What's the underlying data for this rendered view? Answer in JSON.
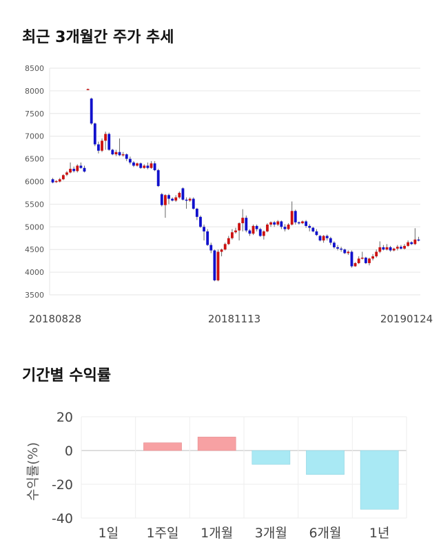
{
  "section1": {
    "title": "최근 3개월간 주가 추세"
  },
  "section2": {
    "title": "기간별 수익률"
  },
  "chart_data": [
    {
      "type": "candlestick",
      "title": "최근 3개월간 주가 추세",
      "y_ticks": [
        "8500",
        "8000",
        "7500",
        "7000",
        "6500",
        "6000",
        "5500",
        "5000",
        "4500",
        "4000",
        "3500"
      ],
      "ylim": [
        3500,
        8500
      ],
      "x_labels": [
        "20180828",
        "20181113",
        "20190124"
      ],
      "grid": true,
      "up_color": "#cc1111",
      "down_color": "#1111cc",
      "candles": [
        [
          6050,
          5980,
          6080,
          5960
        ],
        [
          5990,
          6010,
          6030,
          5970
        ],
        [
          6000,
          6050,
          6080,
          5980
        ],
        [
          6050,
          6140,
          6160,
          6030
        ],
        [
          6150,
          6200,
          6230,
          6120
        ],
        [
          6200,
          6280,
          6420,
          6180
        ],
        [
          6280,
          6230,
          6330,
          6200
        ],
        [
          6230,
          6350,
          6380,
          6200
        ],
        [
          6350,
          6300,
          6420,
          6280
        ],
        [
          6300,
          6220,
          6350,
          6200
        ],
        [
          8030,
          8040,
          8050,
          8020
        ],
        [
          7830,
          7280,
          7850,
          7250
        ],
        [
          7280,
          6820,
          7300,
          6780
        ],
        [
          6820,
          6680,
          6880,
          6620
        ],
        [
          6680,
          6900,
          6950,
          6650
        ],
        [
          6900,
          7050,
          7100,
          6700
        ],
        [
          7050,
          6700,
          7080,
          6680
        ],
        [
          6700,
          6600,
          6720,
          6580
        ],
        [
          6600,
          6650,
          6700,
          6560
        ],
        [
          6650,
          6580,
          6950,
          6560
        ],
        [
          6580,
          6600,
          6650,
          6550
        ],
        [
          6600,
          6500,
          6620,
          6450
        ],
        [
          6500,
          6420,
          6550,
          6380
        ],
        [
          6420,
          6350,
          6450,
          6320
        ],
        [
          6350,
          6400,
          6420,
          6330
        ],
        [
          6400,
          6300,
          6420,
          6280
        ],
        [
          6300,
          6350,
          6380,
          6280
        ],
        [
          6350,
          6300,
          6420,
          6270
        ],
        [
          6300,
          6400,
          6450,
          6280
        ],
        [
          6400,
          6250,
          6450,
          6230
        ],
        [
          6250,
          5900,
          6280,
          5880
        ],
        [
          5720,
          5480,
          5750,
          5450
        ],
        [
          5480,
          5700,
          5720,
          5200
        ],
        [
          5700,
          5620,
          5730,
          5500
        ],
        [
          5620,
          5580,
          5650,
          5560
        ],
        [
          5580,
          5650,
          5700,
          5550
        ],
        [
          5650,
          5750,
          5780,
          5620
        ],
        [
          5850,
          5600,
          5870,
          5580
        ],
        [
          5600,
          5580,
          5650,
          5400
        ],
        [
          5580,
          5620,
          5650,
          5550
        ],
        [
          5620,
          5400,
          5650,
          5380
        ],
        [
          5400,
          5220,
          5420,
          5150
        ],
        [
          5220,
          5000,
          5250,
          4980
        ],
        [
          5000,
          4900,
          5050,
          4700
        ],
        [
          4900,
          4600,
          4950,
          4580
        ],
        [
          4600,
          4480,
          4650,
          4420
        ],
        [
          4480,
          3820,
          4500,
          3800
        ],
        [
          3820,
          4450,
          4500,
          3800
        ],
        [
          4450,
          4500,
          4520,
          4350
        ],
        [
          4500,
          4620,
          4650,
          4480
        ],
        [
          4620,
          4750,
          4800,
          4600
        ],
        [
          4750,
          4880,
          4950,
          4720
        ],
        [
          4880,
          4920,
          4980,
          4850
        ],
        [
          4920,
          5080,
          5100,
          4700
        ],
        [
          5080,
          5200,
          5390,
          4900
        ],
        [
          5200,
          4920,
          5250,
          4880
        ],
        [
          4920,
          4850,
          4950,
          4800
        ],
        [
          4850,
          5020,
          5050,
          4820
        ],
        [
          5020,
          4950,
          5050,
          4900
        ],
        [
          4950,
          4800,
          4980,
          4780
        ],
        [
          4800,
          4900,
          4920,
          4720
        ],
        [
          4900,
          5050,
          5080,
          4880
        ],
        [
          5050,
          5100,
          5120,
          5000
        ],
        [
          5100,
          5050,
          5130,
          5000
        ],
        [
          5050,
          5120,
          5150,
          5020
        ],
        [
          5120,
          5000,
          5140,
          4950
        ],
        [
          5000,
          4950,
          5060,
          4900
        ],
        [
          4950,
          5050,
          5080,
          4930
        ],
        [
          5050,
          5350,
          5560,
          5030
        ],
        [
          5350,
          5100,
          5380,
          5050
        ],
        [
          5100,
          5080,
          5120,
          5050
        ],
        [
          5080,
          5120,
          5140,
          5060
        ],
        [
          5120,
          5020,
          5150,
          4980
        ],
        [
          5020,
          4980,
          5060,
          4900
        ],
        [
          4980,
          4900,
          5000,
          4880
        ],
        [
          4900,
          4820,
          4950,
          4800
        ],
        [
          4800,
          4700,
          4820,
          4680
        ],
        [
          4700,
          4800,
          4820,
          4650
        ],
        [
          4800,
          4750,
          4830,
          4700
        ],
        [
          4750,
          4650,
          4780,
          4600
        ],
        [
          4650,
          4550,
          4680,
          4520
        ],
        [
          4550,
          4520,
          4600,
          4480
        ],
        [
          4520,
          4500,
          4560,
          4450
        ],
        [
          4500,
          4420,
          4520,
          4400
        ],
        [
          4420,
          4450,
          4480,
          4380
        ],
        [
          4450,
          4130,
          4480,
          4100
        ],
        [
          4130,
          4200,
          4220,
          4120
        ],
        [
          4200,
          4300,
          4350,
          4180
        ],
        [
          4300,
          4320,
          4450,
          4280
        ],
        [
          4320,
          4200,
          4340,
          4180
        ],
        [
          4200,
          4300,
          4320,
          4150
        ],
        [
          4300,
          4350,
          4400,
          4260
        ],
        [
          4350,
          4450,
          4500,
          4320
        ],
        [
          4450,
          4550,
          4680,
          4420
        ],
        [
          4550,
          4500,
          4600,
          4480
        ],
        [
          4500,
          4550,
          4620,
          4480
        ],
        [
          4550,
          4480,
          4580,
          4450
        ],
        [
          4480,
          4520,
          4540,
          4460
        ],
        [
          4520,
          4560,
          4600,
          4480
        ],
        [
          4560,
          4520,
          4600,
          4500
        ],
        [
          4520,
          4580,
          4620,
          4500
        ],
        [
          4580,
          4660,
          4700,
          4560
        ],
        [
          4660,
          4620,
          4680,
          4600
        ],
        [
          4620,
          4720,
          4970,
          4600
        ],
        [
          4720,
          4700,
          4780,
          4680
        ]
      ]
    },
    {
      "type": "bar",
      "title": "기간별 수익률",
      "ylabel": "수익률(%)",
      "ylim": [
        -40,
        20
      ],
      "y_ticks": [
        "20",
        "0",
        "-20",
        "-40"
      ],
      "categories": [
        "1일",
        "1주일",
        "1개월",
        "3개월",
        "6개월",
        "1년"
      ],
      "values": [
        0,
        4.6,
        8.0,
        -8.2,
        -14.2,
        -34.8
      ],
      "positive_color": "#f7a1a3",
      "negative_color": "#a9e9f4"
    }
  ]
}
